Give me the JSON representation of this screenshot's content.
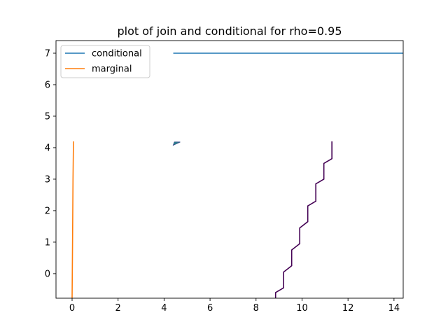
{
  "chart_data": {
    "type": "line",
    "title": "plot of join and conditional for rho=0.95",
    "xlabel": "",
    "ylabel": "",
    "xlim": [
      -0.7,
      14.4
    ],
    "ylim": [
      -0.78,
      7.4
    ],
    "x_ticks": [
      0,
      2,
      4,
      6,
      8,
      10,
      12,
      14
    ],
    "y_ticks": [
      0,
      1,
      2,
      3,
      4,
      5,
      6,
      7
    ],
    "grid": false,
    "legend_position": "top-left",
    "series": [
      {
        "name": "conditional",
        "color": "#1f77b4",
        "x": [
          4.4,
          14.4
        ],
        "y": [
          7.0,
          7.0
        ]
      },
      {
        "name": "marginal",
        "color": "#ff7f0e",
        "x": [
          0.0,
          0.02,
          0.04,
          0.06
        ],
        "y": [
          -0.78,
          1.0,
          3.0,
          4.2
        ]
      }
    ],
    "contour": {
      "color": "#440154",
      "x": [
        8.85,
        8.85,
        9.2,
        9.2,
        9.55,
        9.55,
        9.9,
        9.9,
        10.25,
        10.25,
        10.6,
        10.6,
        10.95,
        10.95,
        11.3,
        11.3
      ],
      "y": [
        -0.78,
        -0.6,
        -0.45,
        0.05,
        0.25,
        0.75,
        0.95,
        1.45,
        1.65,
        2.15,
        2.3,
        2.85,
        3.0,
        3.5,
        3.65,
        4.2
      ]
    },
    "filled_marker": {
      "x": [
        4.4,
        4.7,
        4.45
      ],
      "y": [
        4.08,
        4.18,
        4.18
      ],
      "colors": [
        "#21918c",
        "#3b528b",
        "#5ec962"
      ]
    }
  }
}
